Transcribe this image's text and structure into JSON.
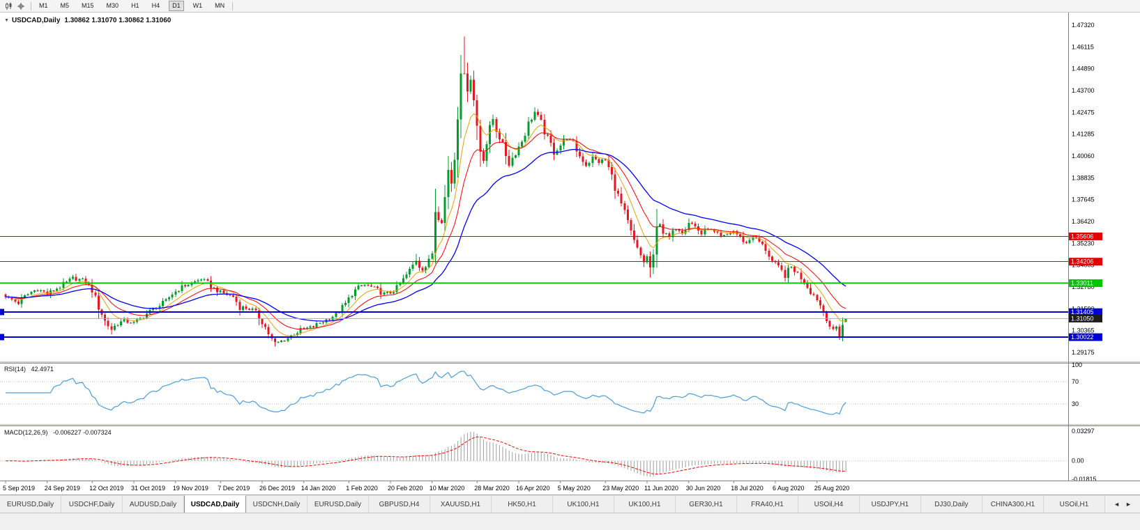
{
  "toolbar": {
    "icons": [
      {
        "name": "candlestick-chart-icon"
      },
      {
        "name": "crosshair-icon"
      }
    ],
    "timeframes": [
      "M1",
      "M5",
      "M15",
      "M30",
      "H1",
      "H4",
      "D1",
      "W1",
      "MN"
    ],
    "active_timeframe": "D1"
  },
  "chart_header": {
    "collapse_arrow": "▼",
    "symbol": "USDCAD,Daily",
    "ohlc": "1.30862 1.31070 1.30862 1.31060"
  },
  "price_scale": {
    "top_value": 1.4732,
    "bottom_value": 1.29175,
    "labels": [
      "1.47320",
      "1.46115",
      "1.44890",
      "1.43700",
      "1.42475",
      "1.41285",
      "1.40060",
      "1.38835",
      "1.37645",
      "1.36420",
      "1.35230",
      "1.34005",
      "1.32780",
      "1.31590",
      "1.30365",
      "1.29175"
    ]
  },
  "rsi_pane": {
    "name": "RSI(14)",
    "value": "42.4971",
    "line_color": "#4c9cdc",
    "levels": [
      70,
      30
    ],
    "scale_labels": [
      {
        "value": 100,
        "text": "100"
      },
      {
        "value": 70,
        "text": "70"
      },
      {
        "value": 30,
        "text": "30"
      }
    ]
  },
  "macd_pane": {
    "name": "MACD(12,26,9)",
    "values": "-0.006227 -0.007324",
    "hist_color": "#9e9e9e",
    "signal_color": "#ff0000",
    "scale_max": 0.03297,
    "scale_min": -0.01815,
    "scale_labels": [
      {
        "value": 0.03297,
        "text": "0.03297"
      },
      {
        "value": 0,
        "text": "0.00"
      },
      {
        "value": -0.01815,
        "text": "-0.01815"
      }
    ]
  },
  "chart_data": {
    "type": "candlestick",
    "symbol": "USDCAD",
    "timeframe": "Daily",
    "current_ohlc": {
      "open": 1.30862,
      "high": 1.3107,
      "low": 1.30862,
      "close": 1.3106
    },
    "current_price": 1.3105,
    "current_price_label": "1.31050",
    "candle_count": 263,
    "up_color": "#009f29",
    "down_color": "#e7191f",
    "moving_average_colors": {
      "fast": "#f0a000",
      "medium": "#ff0000",
      "slow": "#0000ff"
    },
    "hlines": [
      {
        "price": 1.35606,
        "label": "1.35606",
        "color": "#e00000",
        "width": 1
      },
      {
        "price": 1.34206,
        "label": "1.34206",
        "color": "#e00000",
        "width": 1
      },
      {
        "price": 1.33011,
        "label": "1.33011",
        "color": "#00c400",
        "width": 2
      },
      {
        "price": 1.31405,
        "label": "1.31405",
        "color": "#0000d6",
        "width": 2,
        "left_mark": true
      },
      {
        "price": 1.30022,
        "label": "1.30022",
        "color": "#0000d6",
        "width": 2,
        "left_mark": true
      }
    ],
    "x_labels": [
      {
        "day": 0,
        "text": "5 Sep 2019"
      },
      {
        "day": 13,
        "text": "24 Sep 2019"
      },
      {
        "day": 27,
        "text": "12 Oct 2019"
      },
      {
        "day": 40,
        "text": "31 Oct 2019"
      },
      {
        "day": 53,
        "text": "19 Nov 2019"
      },
      {
        "day": 67,
        "text": "7 Dec 2019"
      },
      {
        "day": 80,
        "text": "26 Dec 2019"
      },
      {
        "day": 93,
        "text": "14 Jan 2020"
      },
      {
        "day": 107,
        "text": "1 Feb 2020"
      },
      {
        "day": 120,
        "text": "20 Feb 2020"
      },
      {
        "day": 133,
        "text": "10 Mar 2020"
      },
      {
        "day": 147,
        "text": "28 Mar 2020"
      },
      {
        "day": 160,
        "text": "16 Apr 2020"
      },
      {
        "day": 173,
        "text": "5 May 2020"
      },
      {
        "day": 187,
        "text": "23 May 2020"
      },
      {
        "day": 200,
        "text": "11 Jun 2020"
      },
      {
        "day": 213,
        "text": "30 Jun 2020"
      },
      {
        "day": 227,
        "text": "18 Jul 2020"
      },
      {
        "day": 240,
        "text": "6 Aug 2020"
      },
      {
        "day": 253,
        "text": "25 Aug 2020"
      }
    ],
    "close_anchors": [
      [
        0,
        1.3225
      ],
      [
        2,
        1.321
      ],
      [
        4,
        1.3192
      ],
      [
        6,
        1.3228
      ],
      [
        8,
        1.3252
      ],
      [
        10,
        1.3268
      ],
      [
        12,
        1.3252
      ],
      [
        13,
        1.324
      ],
      [
        15,
        1.3262
      ],
      [
        17,
        1.3282
      ],
      [
        19,
        1.3306
      ],
      [
        21,
        1.333
      ],
      [
        23,
        1.3322
      ],
      [
        25,
        1.331
      ],
      [
        27,
        1.3262
      ],
      [
        29,
        1.3172
      ],
      [
        31,
        1.309
      ],
      [
        33,
        1.3045
      ],
      [
        35,
        1.3078
      ],
      [
        37,
        1.3092
      ],
      [
        40,
        1.3082
      ],
      [
        42,
        1.3105
      ],
      [
        44,
        1.3132
      ],
      [
        46,
        1.3158
      ],
      [
        48,
        1.3176
      ],
      [
        50,
        1.3205
      ],
      [
        52,
        1.3242
      ],
      [
        54,
        1.3268
      ],
      [
        56,
        1.3288
      ],
      [
        58,
        1.3302
      ],
      [
        61,
        1.3325
      ],
      [
        63,
        1.3302
      ],
      [
        65,
        1.3272
      ],
      [
        67,
        1.3252
      ],
      [
        69,
        1.3238
      ],
      [
        71,
        1.3228
      ],
      [
        73,
        1.317
      ],
      [
        75,
        1.3162
      ],
      [
        77,
        1.3155
      ],
      [
        79,
        1.3112
      ],
      [
        81,
        1.3058
      ],
      [
        83,
        1.2988
      ],
      [
        84,
        1.2965
      ],
      [
        86,
        1.298
      ],
      [
        88,
        1.2998
      ],
      [
        90,
        1.3022
      ],
      [
        92,
        1.304
      ],
      [
        94,
        1.3052
      ],
      [
        96,
        1.306
      ],
      [
        98,
        1.308
      ],
      [
        100,
        1.3098
      ],
      [
        102,
        1.3118
      ],
      [
        104,
        1.3142
      ],
      [
        106,
        1.3188
      ],
      [
        108,
        1.3242
      ],
      [
        110,
        1.3278
      ],
      [
        112,
        1.3292
      ],
      [
        114,
        1.328
      ],
      [
        116,
        1.3262
      ],
      [
        118,
        1.3242
      ],
      [
        120,
        1.3248
      ],
      [
        122,
        1.3275
      ],
      [
        124,
        1.3322
      ],
      [
        126,
        1.3372
      ],
      [
        128,
        1.3432
      ],
      [
        129,
        1.3398
      ],
      [
        130,
        1.338
      ],
      [
        131,
        1.3395
      ],
      [
        132,
        1.3422
      ],
      [
        133,
        1.347
      ],
      [
        134,
        1.3712
      ],
      [
        135,
        1.3668
      ],
      [
        136,
        1.3645
      ],
      [
        137,
        1.3775
      ],
      [
        138,
        1.3928
      ],
      [
        139,
        1.3862
      ],
      [
        140,
        1.3998
      ],
      [
        141,
        1.4242
      ],
      [
        142,
        1.4496
      ],
      [
        143,
        1.4452
      ],
      [
        144,
        1.439
      ],
      [
        145,
        1.4448
      ],
      [
        146,
        1.4312
      ],
      [
        147,
        1.4175
      ],
      [
        148,
        1.4042
      ],
      [
        149,
        1.3995
      ],
      [
        150,
        1.408
      ],
      [
        151,
        1.415
      ],
      [
        152,
        1.4212
      ],
      [
        153,
        1.4155
      ],
      [
        155,
        1.4065
      ],
      [
        157,
        1.3965
      ],
      [
        159,
        1.4025
      ],
      [
        161,
        1.409
      ],
      [
        163,
        1.4182
      ],
      [
        165,
        1.425
      ],
      [
        167,
        1.4188
      ],
      [
        169,
        1.4105
      ],
      [
        171,
        1.4032
      ],
      [
        173,
        1.4068
      ],
      [
        175,
        1.4108
      ],
      [
        177,
        1.4075
      ],
      [
        179,
        1.4005
      ],
      [
        181,
        1.3958
      ],
      [
        183,
        1.3995
      ],
      [
        185,
        1.3975
      ],
      [
        187,
        1.3985
      ],
      [
        189,
        1.3892
      ],
      [
        191,
        1.3788
      ],
      [
        193,
        1.3685
      ],
      [
        195,
        1.3575
      ],
      [
        197,
        1.3482
      ],
      [
        199,
        1.3422
      ],
      [
        200,
        1.3445
      ],
      [
        201,
        1.3388
      ],
      [
        202,
        1.344
      ],
      [
        203,
        1.3598
      ],
      [
        204,
        1.3642
      ],
      [
        205,
        1.3585
      ],
      [
        207,
        1.3552
      ],
      [
        209,
        1.3612
      ],
      [
        211,
        1.3585
      ],
      [
        213,
        1.3648
      ],
      [
        215,
        1.3615
      ],
      [
        217,
        1.3575
      ],
      [
        219,
        1.3605
      ],
      [
        221,
        1.358
      ],
      [
        223,
        1.3552
      ],
      [
        225,
        1.357
      ],
      [
        227,
        1.359
      ],
      [
        229,
        1.3555
      ],
      [
        231,
        1.3522
      ],
      [
        233,
        1.3565
      ],
      [
        235,
        1.353
      ],
      [
        237,
        1.349
      ],
      [
        239,
        1.3422
      ],
      [
        241,
        1.3385
      ],
      [
        243,
        1.3345
      ],
      [
        245,
        1.339
      ],
      [
        247,
        1.3355
      ],
      [
        249,
        1.331
      ],
      [
        251,
        1.3255
      ],
      [
        253,
        1.3215
      ],
      [
        254,
        1.318
      ],
      [
        255,
        1.3145
      ],
      [
        256,
        1.311
      ],
      [
        257,
        1.3065
      ],
      [
        258,
        1.303
      ],
      [
        259,
        1.3058
      ],
      [
        260,
        1.3015
      ],
      [
        261,
        1.307
      ],
      [
        262,
        1.3106
      ]
    ],
    "wick_overrides": [
      {
        "day": 33,
        "low": 1.3015
      },
      {
        "day": 84,
        "low": 1.2951
      },
      {
        "day": 128,
        "high": 1.3464
      },
      {
        "day": 143,
        "high": 1.4669
      },
      {
        "day": 201,
        "low": 1.3332
      },
      {
        "day": 260,
        "low": 1.2994
      }
    ]
  },
  "tab_bar": {
    "tabs": [
      "EURUSD,Daily",
      "USDCHF,Daily",
      "AUDUSD,Daily",
      "USDCAD,Daily",
      "USDCNH,Daily",
      "EURUSD,Daily",
      "GBPUSD,H4",
      "XAUUSD,H1",
      "HK50,H1",
      "UK100,H1",
      "UK100,H1",
      "GER30,H1",
      "FRA40,H1",
      "USOil,H4",
      "USDJPY,H1",
      "DJ30,Daily",
      "CHINA300,H1",
      "USOil,H1"
    ],
    "active_index": 3,
    "scroll_left": "◄",
    "scroll_right": "►"
  }
}
